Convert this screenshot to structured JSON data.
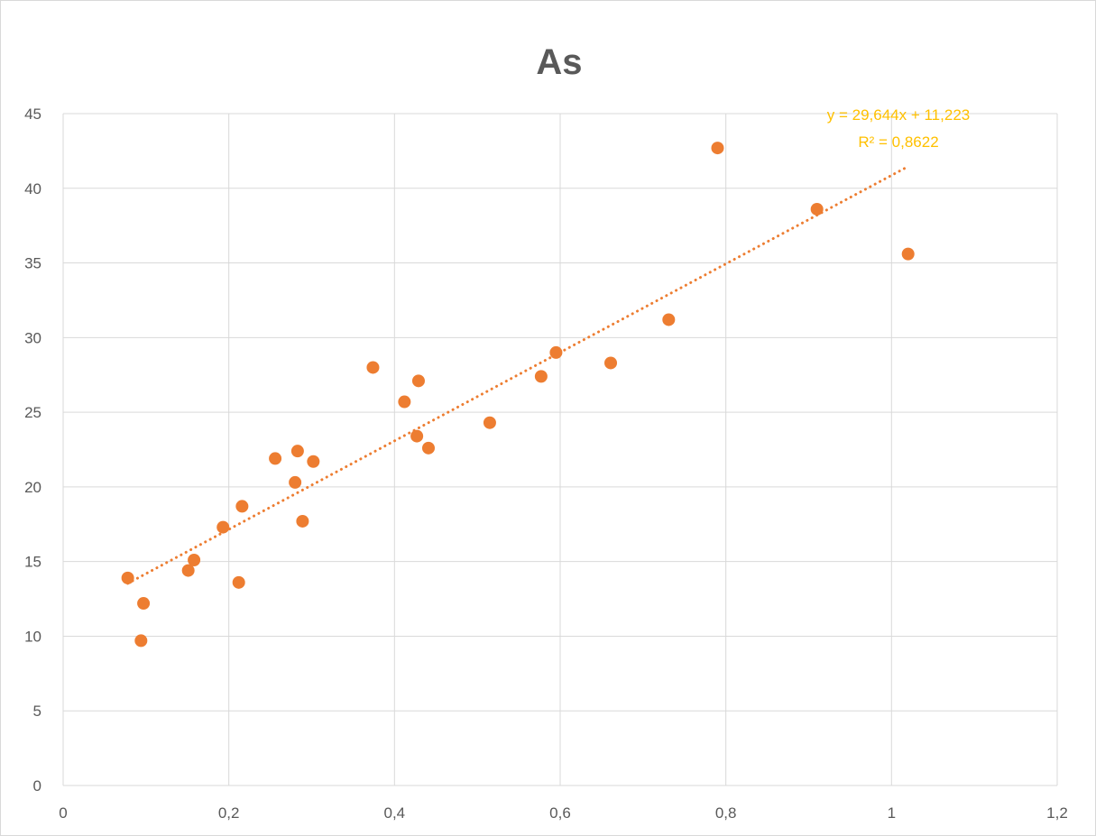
{
  "colors": {
    "points": "#ed7d31",
    "trendline": "#ed7d31",
    "equation": "#ffc000",
    "grid": "#d9d9d9",
    "text": "#595959"
  },
  "chart_data": {
    "type": "scatter",
    "title": "As",
    "xlabel": "",
    "ylabel": "",
    "xlim": [
      0,
      1.2
    ],
    "ylim": [
      0,
      45
    ],
    "xticks": [
      0,
      0.2,
      0.4,
      0.6,
      0.8,
      1,
      1.2
    ],
    "yticks": [
      0,
      5,
      10,
      15,
      20,
      25,
      30,
      35,
      40,
      45
    ],
    "xtick_labels": [
      "0",
      "0,2",
      "0,4",
      "0,6",
      "0,8",
      "1",
      "1,2"
    ],
    "ytick_labels": [
      "0",
      "5",
      "10",
      "15",
      "20",
      "25",
      "30",
      "35",
      "40",
      "45"
    ],
    "grid": true,
    "legend": "none",
    "series": [
      {
        "x": [
          0.078,
          0.094,
          0.097,
          0.151,
          0.158,
          0.193,
          0.212,
          0.216,
          0.256,
          0.28,
          0.283,
          0.289,
          0.302,
          0.374,
          0.412,
          0.427,
          0.429,
          0.441,
          0.515,
          0.577,
          0.595,
          0.661,
          0.731,
          0.79,
          0.91,
          1.02
        ],
        "y": [
          13.9,
          9.7,
          12.2,
          14.4,
          15.1,
          17.3,
          13.6,
          18.7,
          21.9,
          20.3,
          22.4,
          17.7,
          21.7,
          28.0,
          25.7,
          23.4,
          27.1,
          22.6,
          24.3,
          27.4,
          29.0,
          28.3,
          31.2,
          42.7,
          38.6,
          35.6
        ]
      }
    ],
    "trendline": {
      "type": "linear",
      "slope": 29.644,
      "intercept": 11.223,
      "x_start": 0.078,
      "x_end": 1.02,
      "equation": "y = 29,644x + 11,223",
      "r_squared": "R² = 0,8622"
    }
  }
}
